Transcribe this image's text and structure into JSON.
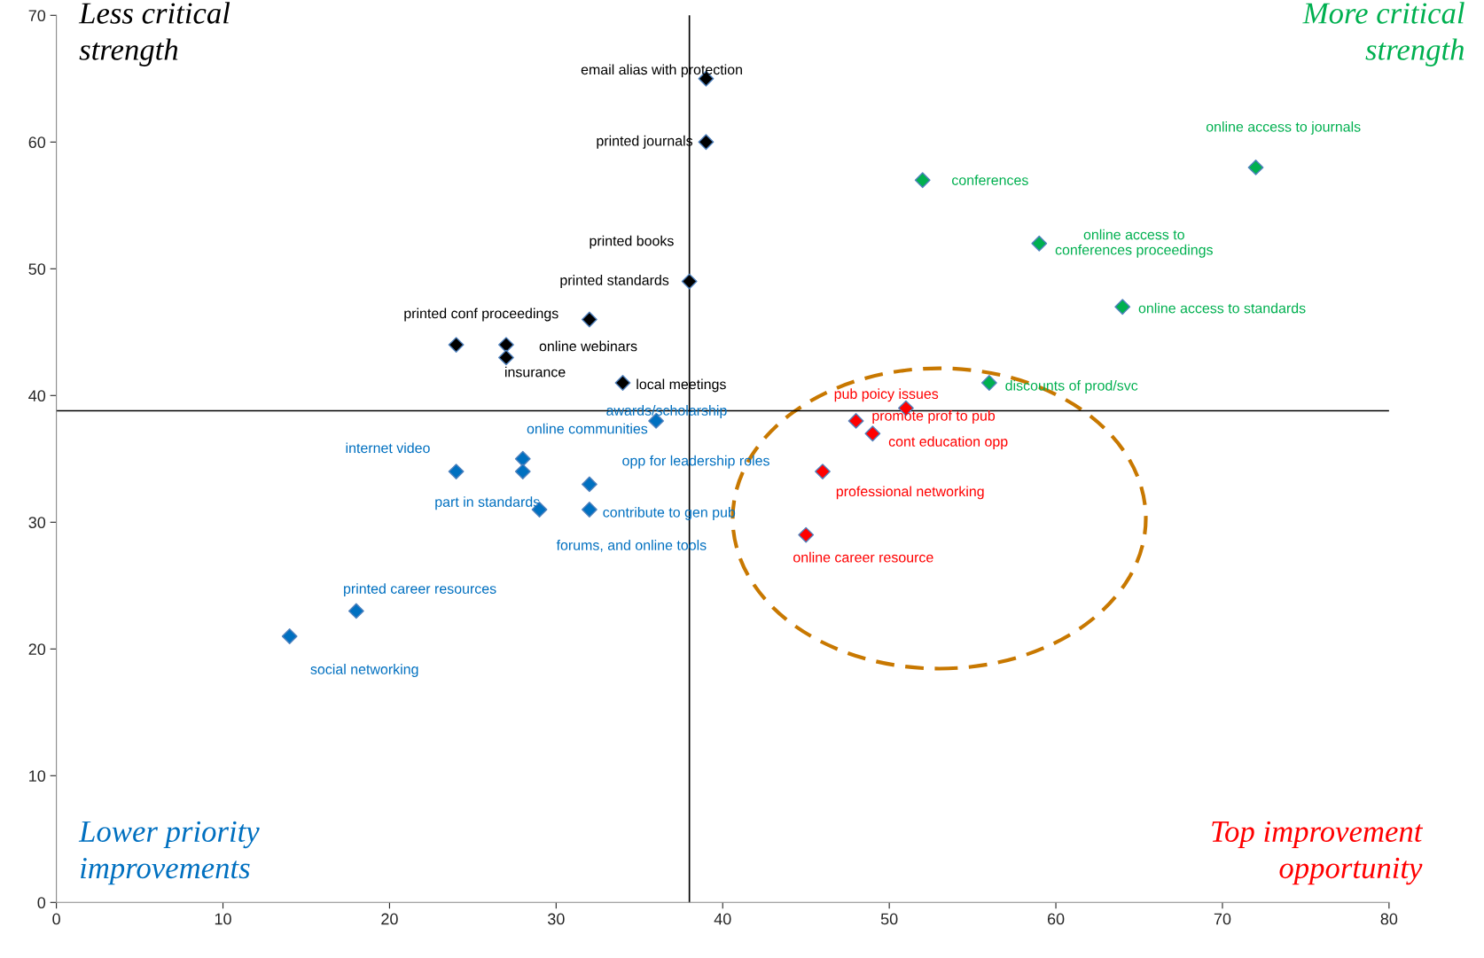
{
  "chart_data": {
    "type": "scatter",
    "xlim": [
      0,
      80
    ],
    "ylim": [
      0,
      70
    ],
    "xticks": [
      0,
      10,
      20,
      30,
      40,
      50,
      60,
      70,
      80
    ],
    "yticks": [
      0,
      10,
      20,
      30,
      40,
      50,
      60,
      70
    ],
    "grid": false,
    "legend": false,
    "marker": "diamond",
    "series": [
      {
        "color": "#000000",
        "x": [
          39,
          39,
          38,
          32,
          24,
          27,
          27,
          34
        ],
        "values": [
          65,
          60,
          49,
          46,
          44,
          44,
          43,
          41
        ],
        "value_labels": [
          "email alias with protection",
          "printed journals",
          "printed books",
          "printed standards",
          "printed conf proceedings",
          "online webinars",
          "insurance",
          "local meetings"
        ]
      },
      {
        "color": "#0070c0",
        "x": [
          36,
          28,
          24,
          28,
          32,
          32,
          29,
          18,
          14
        ],
        "values": [
          38,
          35,
          34,
          34,
          33,
          31,
          31,
          23,
          21
        ],
        "value_labels": [
          "awards/scholarship",
          "online communities",
          "internet video",
          "part in standards",
          "opp for leadership roles",
          "contribute to gen pub",
          "forums, and online tools",
          "printed career resources",
          "social networking"
        ]
      },
      {
        "color": "#00b050",
        "x": [
          52,
          72,
          59,
          64,
          56
        ],
        "values": [
          57,
          58,
          52,
          47,
          41
        ],
        "value_labels": [
          "conferences",
          "online access to journals",
          "online access to\nconferences proceedings",
          "online access to standards",
          "discounts of prod/svc"
        ]
      },
      {
        "color": "#ff0000",
        "x": [
          51,
          48,
          49,
          46,
          45
        ],
        "values": [
          39,
          38,
          37,
          34,
          29
        ],
        "value_labels": [
          "pub poicy issues",
          "promote prof to pub",
          "cont education opp",
          "professional networking",
          "online career resource"
        ]
      }
    ],
    "ref_lines": [
      {
        "axis": "x",
        "value": 38,
        "color": "#000000"
      },
      {
        "axis": "y",
        "value": 38.8,
        "color": "#000000"
      }
    ],
    "annotations": [
      "Less critical\nstrength",
      "More critical\nstrength",
      "Lower priority\nimprovements",
      "Top improvement\nopportunity"
    ]
  }
}
